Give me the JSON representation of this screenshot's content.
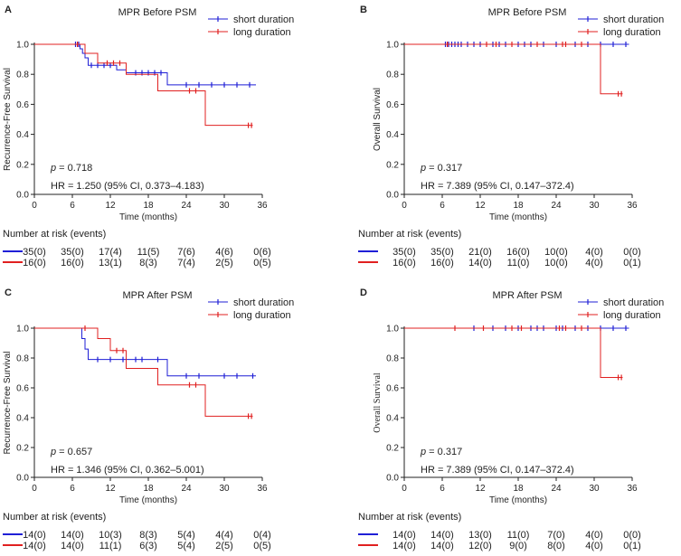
{
  "chart_data": [
    {
      "panel": "A",
      "type": "line",
      "title": "MPR  Before PSM",
      "xlabel": "Time (months)",
      "ylabel": "Recurrence-Free Survival",
      "xlim": [
        0,
        36
      ],
      "ylim": [
        0,
        1
      ],
      "xticks": [
        "0",
        "6",
        "12",
        "18",
        "24",
        "30",
        "36"
      ],
      "yticks": [
        "0.0",
        "0.2",
        "0.4",
        "0.6",
        "0.8",
        "1.0"
      ],
      "legend": [
        "short duration",
        "long duration"
      ],
      "p_label": "p",
      "p_value": " = 0.718",
      "hr": "HR = 1.250 (95% CI, 0.373–4.183)",
      "risk_title": "Number at risk (events)",
      "series": [
        {
          "name": "short duration",
          "color": "#1f1fd6",
          "steps": [
            [
              0,
              1.0
            ],
            [
              7.2,
              0.97
            ],
            [
              7.6,
              0.94
            ],
            [
              8,
              0.91
            ],
            [
              8.5,
              0.86
            ],
            [
              13,
              0.83
            ],
            [
              14.5,
              0.81
            ],
            [
              21,
              0.73
            ],
            [
              35,
              0.73
            ]
          ],
          "censor": [
            [
              6.5,
              1.0
            ],
            [
              7,
              1.0
            ],
            [
              9,
              0.86
            ],
            [
              10,
              0.86
            ],
            [
              11,
              0.86
            ],
            [
              12,
              0.86
            ],
            [
              16,
              0.81
            ],
            [
              17,
              0.81
            ],
            [
              18,
              0.81
            ],
            [
              19,
              0.81
            ],
            [
              20,
              0.81
            ],
            [
              24,
              0.73
            ],
            [
              26,
              0.73
            ],
            [
              28,
              0.73
            ],
            [
              30,
              0.73
            ],
            [
              32,
              0.73
            ],
            [
              34,
              0.73
            ]
          ]
        },
        {
          "name": "long duration",
          "color": "#e02020",
          "steps": [
            [
              0,
              1.0
            ],
            [
              8,
              0.94
            ],
            [
              10,
              0.875
            ],
            [
              14.5,
              0.8
            ],
            [
              19.5,
              0.69
            ],
            [
              27,
              0.46
            ],
            [
              34.5,
              0.46
            ]
          ],
          "censor": [
            [
              6.8,
              1.0
            ],
            [
              11.5,
              0.875
            ],
            [
              12.5,
              0.875
            ],
            [
              13.5,
              0.875
            ],
            [
              24.5,
              0.69
            ],
            [
              25.5,
              0.69
            ],
            [
              33.8,
              0.46
            ],
            [
              34.3,
              0.46
            ]
          ]
        }
      ],
      "risk": [
        [
          "35(0)",
          "35(0)",
          "17(4)",
          "11(5)",
          "7(6)",
          "4(6)",
          "0(6)"
        ],
        [
          "16(0)",
          "16(0)",
          "13(1)",
          "8(3)",
          "7(4)",
          "2(5)",
          "0(5)"
        ]
      ]
    },
    {
      "panel": "B",
      "type": "line",
      "title": "MPR  Before PSM",
      "xlabel": "Time (months)",
      "ylabel": "Overall Survival",
      "xlim": [
        0,
        36
      ],
      "ylim": [
        0,
        1
      ],
      "xticks": [
        "0",
        "6",
        "12",
        "18",
        "24",
        "30",
        "36"
      ],
      "yticks": [
        "0.0",
        "0.2",
        "0.4",
        "0.6",
        "0.8",
        "1.0"
      ],
      "legend": [
        "short duration",
        "long duration"
      ],
      "p_label": "p",
      "p_value": " = 0.317",
      "hr": "HR = 7.389 (95% CI, 0.147–372.4)",
      "risk_title": "Number at risk (events)",
      "series": [
        {
          "name": "short duration",
          "color": "#1f1fd6",
          "steps": [
            [
              0,
              1.0
            ],
            [
              35.5,
              1.0
            ]
          ],
          "censor": [
            [
              6.5,
              1.0
            ],
            [
              7,
              1.0
            ],
            [
              7.5,
              1.0
            ],
            [
              8,
              1.0
            ],
            [
              8.5,
              1.0
            ],
            [
              9,
              1.0
            ],
            [
              10,
              1.0
            ],
            [
              11,
              1.0
            ],
            [
              12,
              1.0
            ],
            [
              14,
              1.0
            ],
            [
              15,
              1.0
            ],
            [
              16,
              1.0
            ],
            [
              18,
              1.0
            ],
            [
              19,
              1.0
            ],
            [
              20,
              1.0
            ],
            [
              22,
              1.0
            ],
            [
              24,
              1.0
            ],
            [
              27,
              1.0
            ],
            [
              29,
              1.0
            ],
            [
              31,
              1.0
            ],
            [
              33,
              1.0
            ],
            [
              35,
              1.0
            ]
          ]
        },
        {
          "name": "long duration",
          "color": "#e02020",
          "steps": [
            [
              0,
              1.0
            ],
            [
              31,
              0.67
            ],
            [
              34.5,
              0.67
            ]
          ],
          "censor": [
            [
              6.8,
              1.0
            ],
            [
              13,
              1.0
            ],
            [
              14.5,
              1.0
            ],
            [
              17,
              1.0
            ],
            [
              21,
              1.0
            ],
            [
              25,
              1.0
            ],
            [
              25.5,
              1.0
            ],
            [
              28,
              1.0
            ],
            [
              33.8,
              0.67
            ],
            [
              34.3,
              0.67
            ]
          ]
        }
      ],
      "risk": [
        [
          "35(0)",
          "35(0)",
          "21(0)",
          "16(0)",
          "10(0)",
          "4(0)",
          "0(0)"
        ],
        [
          "16(0)",
          "16(0)",
          "14(0)",
          "11(0)",
          "10(0)",
          "4(0)",
          "0(1)"
        ]
      ]
    },
    {
      "panel": "C",
      "type": "line",
      "title": "MPR  After PSM",
      "xlabel": "Time (months)",
      "ylabel": "Recurrence-Free Survival",
      "xlim": [
        0,
        36
      ],
      "ylim": [
        0,
        1
      ],
      "xticks": [
        "0",
        "6",
        "12",
        "18",
        "24",
        "30",
        "36"
      ],
      "yticks": [
        "0.0",
        "0.2",
        "0.4",
        "0.6",
        "0.8",
        "1.0"
      ],
      "legend": [
        "short duration",
        "long duration"
      ],
      "p_label": "p",
      "p_value": " = 0.657",
      "hr": "HR = 1.346 (95% CI, 0.362–5.001)",
      "risk_title": "Number at risk (events)",
      "series": [
        {
          "name": "short duration",
          "color": "#1f1fd6",
          "steps": [
            [
              0,
              1.0
            ],
            [
              7.5,
              0.93
            ],
            [
              8,
              0.86
            ],
            [
              8.5,
              0.79
            ],
            [
              21,
              0.68
            ],
            [
              35,
              0.68
            ]
          ],
          "censor": [
            [
              10,
              0.79
            ],
            [
              12,
              0.79
            ],
            [
              14,
              0.79
            ],
            [
              16,
              0.79
            ],
            [
              17,
              0.79
            ],
            [
              19.5,
              0.79
            ],
            [
              24,
              0.68
            ],
            [
              26,
              0.68
            ],
            [
              30,
              0.68
            ],
            [
              32,
              0.68
            ],
            [
              34.5,
              0.68
            ]
          ]
        },
        {
          "name": "long duration",
          "color": "#e02020",
          "steps": [
            [
              0,
              1.0
            ],
            [
              10,
              0.93
            ],
            [
              12,
              0.85
            ],
            [
              14.5,
              0.73
            ],
            [
              19.5,
              0.62
            ],
            [
              27,
              0.41
            ],
            [
              34.5,
              0.41
            ]
          ],
          "censor": [
            [
              8,
              1.0
            ],
            [
              13,
              0.85
            ],
            [
              14,
              0.85
            ],
            [
              24.5,
              0.62
            ],
            [
              25.5,
              0.62
            ],
            [
              33.8,
              0.41
            ],
            [
              34.3,
              0.41
            ]
          ]
        }
      ],
      "risk": [
        [
          "14(0)",
          "14(0)",
          "10(3)",
          "8(3)",
          "5(4)",
          "4(4)",
          "0(4)"
        ],
        [
          "14(0)",
          "14(0)",
          "11(1)",
          "6(3)",
          "5(4)",
          "2(5)",
          "0(5)"
        ]
      ]
    },
    {
      "panel": "D",
      "type": "line",
      "title": "MPR  After PSM",
      "xlabel": "Time (months)",
      "ylabel": "Overall Survival",
      "xlim": [
        0,
        36
      ],
      "ylim": [
        0,
        1
      ],
      "xticks": [
        "0",
        "6",
        "12",
        "18",
        "24",
        "30",
        "36"
      ],
      "yticks": [
        "0.0",
        "0.2",
        "0.4",
        "0.6",
        "0.8",
        "1.0"
      ],
      "legend": [
        "short duration",
        "long duration"
      ],
      "p_label": "p",
      "p_value": " = 0.317",
      "hr": "HR = 7.389 (95% CI, 0.147–372.4)",
      "risk_title": "Number at risk (events)",
      "series": [
        {
          "name": "short duration",
          "color": "#1f1fd6",
          "steps": [
            [
              0,
              1.0
            ],
            [
              35.5,
              1.0
            ]
          ],
          "censor": [
            [
              11,
              1.0
            ],
            [
              14,
              1.0
            ],
            [
              16,
              1.0
            ],
            [
              18,
              1.0
            ],
            [
              20,
              1.0
            ],
            [
              21,
              1.0
            ],
            [
              22,
              1.0
            ],
            [
              24,
              1.0
            ],
            [
              25,
              1.0
            ],
            [
              27,
              1.0
            ],
            [
              29,
              1.0
            ],
            [
              31,
              1.0
            ],
            [
              33,
              1.0
            ],
            [
              35,
              1.0
            ]
          ]
        },
        {
          "name": "long duration",
          "color": "#e02020",
          "steps": [
            [
              0,
              1.0
            ],
            [
              31,
              0.67
            ],
            [
              34.5,
              0.67
            ]
          ],
          "censor": [
            [
              8,
              1.0
            ],
            [
              12.5,
              1.0
            ],
            [
              17,
              1.0
            ],
            [
              18.5,
              1.0
            ],
            [
              24.5,
              1.0
            ],
            [
              25.5,
              1.0
            ],
            [
              28,
              1.0
            ],
            [
              33.8,
              0.67
            ],
            [
              34.3,
              0.67
            ]
          ]
        }
      ],
      "risk": [
        [
          "14(0)",
          "14(0)",
          "13(0)",
          "11(0)",
          "7(0)",
          "4(0)",
          "0(0)"
        ],
        [
          "14(0)",
          "14(0)",
          "12(0)",
          "9(0)",
          "8(0)",
          "4(0)",
          "0(1)"
        ]
      ]
    }
  ]
}
